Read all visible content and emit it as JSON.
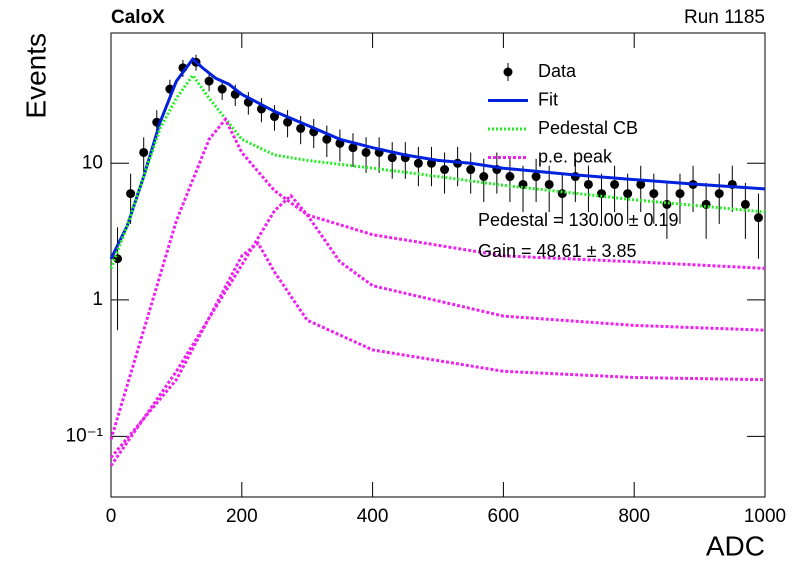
{
  "chart_data": {
    "type": "scatter",
    "title": "CaloX",
    "subtitle": "Run 1185",
    "x_label": "ADC",
    "y_label": "Events",
    "log_y": true,
    "legend": "upper right",
    "annotations": [
      "Pedestal = 130.00 ± 0.19",
      "Gain = 48.61 ± 3.85"
    ],
    "xlim": [
      0,
      1000
    ],
    "ylim": [
      0.036,
      90
    ],
    "xticks": [
      0,
      200,
      400,
      600,
      800,
      1000
    ],
    "yticks": [
      {
        "value": 0.1,
        "label": "10⁻¹"
      },
      1,
      10
    ],
    "series": [
      {
        "name": "Data",
        "color": "#000000",
        "x": [
          10,
          30,
          50,
          70,
          90,
          110,
          130,
          150,
          170,
          190,
          210,
          230,
          250,
          270,
          290,
          310,
          330,
          350,
          370,
          390,
          410,
          430,
          450,
          470,
          490,
          510,
          530,
          550,
          570,
          590,
          610,
          630,
          650,
          670,
          690,
          710,
          730,
          750,
          770,
          790,
          810,
          830,
          850,
          870,
          890,
          910,
          930,
          950,
          970,
          990
        ],
        "values": [
          2,
          6,
          12,
          20,
          35,
          50,
          55,
          40,
          35,
          32,
          28,
          25,
          22,
          20,
          18,
          17,
          15,
          14,
          13,
          12,
          12,
          11,
          11,
          10,
          10,
          9,
          10,
          9,
          8,
          9,
          8,
          7,
          8,
          7,
          6,
          8,
          7,
          6,
          7,
          6,
          7,
          6,
          5,
          6,
          7,
          5,
          6,
          7,
          5,
          4
        ],
        "errors": [
          1.4,
          2.4,
          3.5,
          4.5,
          5.9,
          7.1,
          7.4,
          6.3,
          5.9,
          5.7,
          5.3,
          5,
          4.7,
          4.5,
          4.2,
          4.1,
          3.9,
          3.7,
          3.6,
          3.5,
          3.5,
          3.3,
          3.3,
          3.2,
          3.2,
          3,
          3.2,
          3,
          2.8,
          3,
          2.8,
          2.6,
          2.8,
          2.6,
          2.4,
          2.8,
          2.6,
          2.4,
          2.6,
          2.4,
          2.6,
          2.4,
          2.2,
          2.4,
          2.6,
          2.2,
          2.4,
          2.6,
          2.2,
          2
        ]
      },
      {
        "name": "Fit",
        "color": "#0022dd",
        "x": [
          0,
          25,
          50,
          75,
          100,
          125,
          140,
          160,
          180,
          200,
          250,
          300,
          350,
          400,
          450,
          500,
          550,
          600,
          700,
          800,
          900,
          1000
        ],
        "values": [
          2,
          3.5,
          8,
          20,
          40,
          58,
          50,
          42,
          38,
          32,
          24,
          19,
          15,
          13,
          11.5,
          10.5,
          10,
          9.2,
          8.3,
          7.6,
          7,
          6.5
        ]
      },
      {
        "name": "Pedestal CB",
        "color": "#22ee22",
        "x": [
          0,
          25,
          50,
          75,
          100,
          125,
          150,
          200,
          250,
          300,
          400,
          500,
          600,
          800,
          1000
        ],
        "values": [
          1.7,
          3.5,
          8,
          18,
          30,
          44,
          30,
          15,
          11.5,
          10.5,
          9.2,
          8,
          6.9,
          5.4,
          4.4
        ]
      },
      {
        "name": "p.e. peak",
        "color": "#ee22ee",
        "x": [
          0,
          50,
          100,
          150,
          175,
          200,
          250,
          300,
          400,
          600,
          800,
          1000
        ],
        "values": [
          0.095,
          0.6,
          3.8,
          15,
          21,
          12,
          6.3,
          4.2,
          3,
          2.1,
          1.9,
          1.7
        ]
      },
      {
        "color": "#ee22ee",
        "x": [
          0,
          100,
          200,
          250,
          275,
          300,
          350,
          400,
          600,
          800,
          1000
        ],
        "values": [
          0.061,
          0.3,
          1.8,
          4.5,
          5.8,
          4.2,
          1.9,
          1.27,
          0.76,
          0.65,
          0.6
        ]
      },
      {
        "color": "#ee22ee",
        "x": [
          0,
          100,
          200,
          225,
          250,
          300,
          400,
          600,
          800,
          1000
        ],
        "values": [
          0.07,
          0.26,
          2.1,
          2.6,
          1.6,
          0.71,
          0.43,
          0.3,
          0.27,
          0.26
        ]
      }
    ]
  }
}
